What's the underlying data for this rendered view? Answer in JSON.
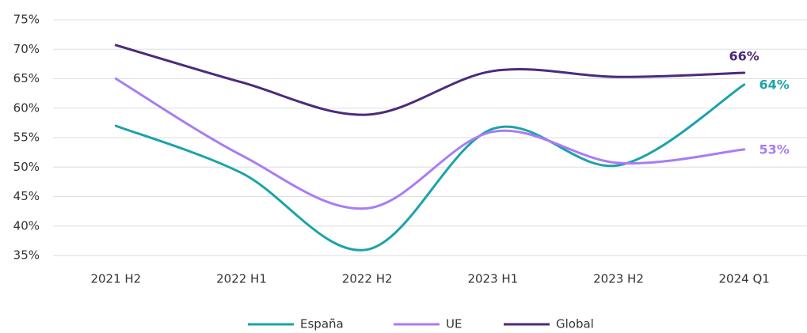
{
  "chart_data": {
    "type": "line",
    "categories": [
      "2021 H2",
      "2022 H1",
      "2022 H2",
      "2023 H1",
      "2023 H2",
      "2024 Q1"
    ],
    "series": [
      {
        "name": "España",
        "color": "#1ba3a9",
        "values": [
          57,
          49,
          36,
          56.5,
          50.3,
          64
        ],
        "value_labels": [
          null,
          null,
          null,
          null,
          null,
          "64%"
        ]
      },
      {
        "name": "UE",
        "color": "#a87cf5",
        "values": [
          65,
          52,
          43,
          56,
          50.7,
          53
        ],
        "value_labels": [
          null,
          null,
          null,
          null,
          null,
          "53%"
        ]
      },
      {
        "name": "Global",
        "color": "#4c2a7c",
        "values": [
          70.7,
          64.4,
          58.9,
          66.3,
          65.3,
          66
        ],
        "value_labels": [
          null,
          null,
          null,
          null,
          null,
          "66%"
        ]
      }
    ],
    "ylim": [
      35,
      75
    ],
    "yticks": [
      {
        "value": 35,
        "label": "35%"
      },
      {
        "value": 40,
        "label": "40%"
      },
      {
        "value": 45,
        "label": "45%"
      },
      {
        "value": 50,
        "label": "50%"
      },
      {
        "value": 55,
        "label": "55%"
      },
      {
        "value": 60,
        "label": "60%"
      },
      {
        "value": 65,
        "label": "65%"
      },
      {
        "value": 70,
        "label": "70%"
      },
      {
        "value": 75,
        "label": "75%"
      }
    ],
    "grid": true,
    "legend": "bottom"
  }
}
